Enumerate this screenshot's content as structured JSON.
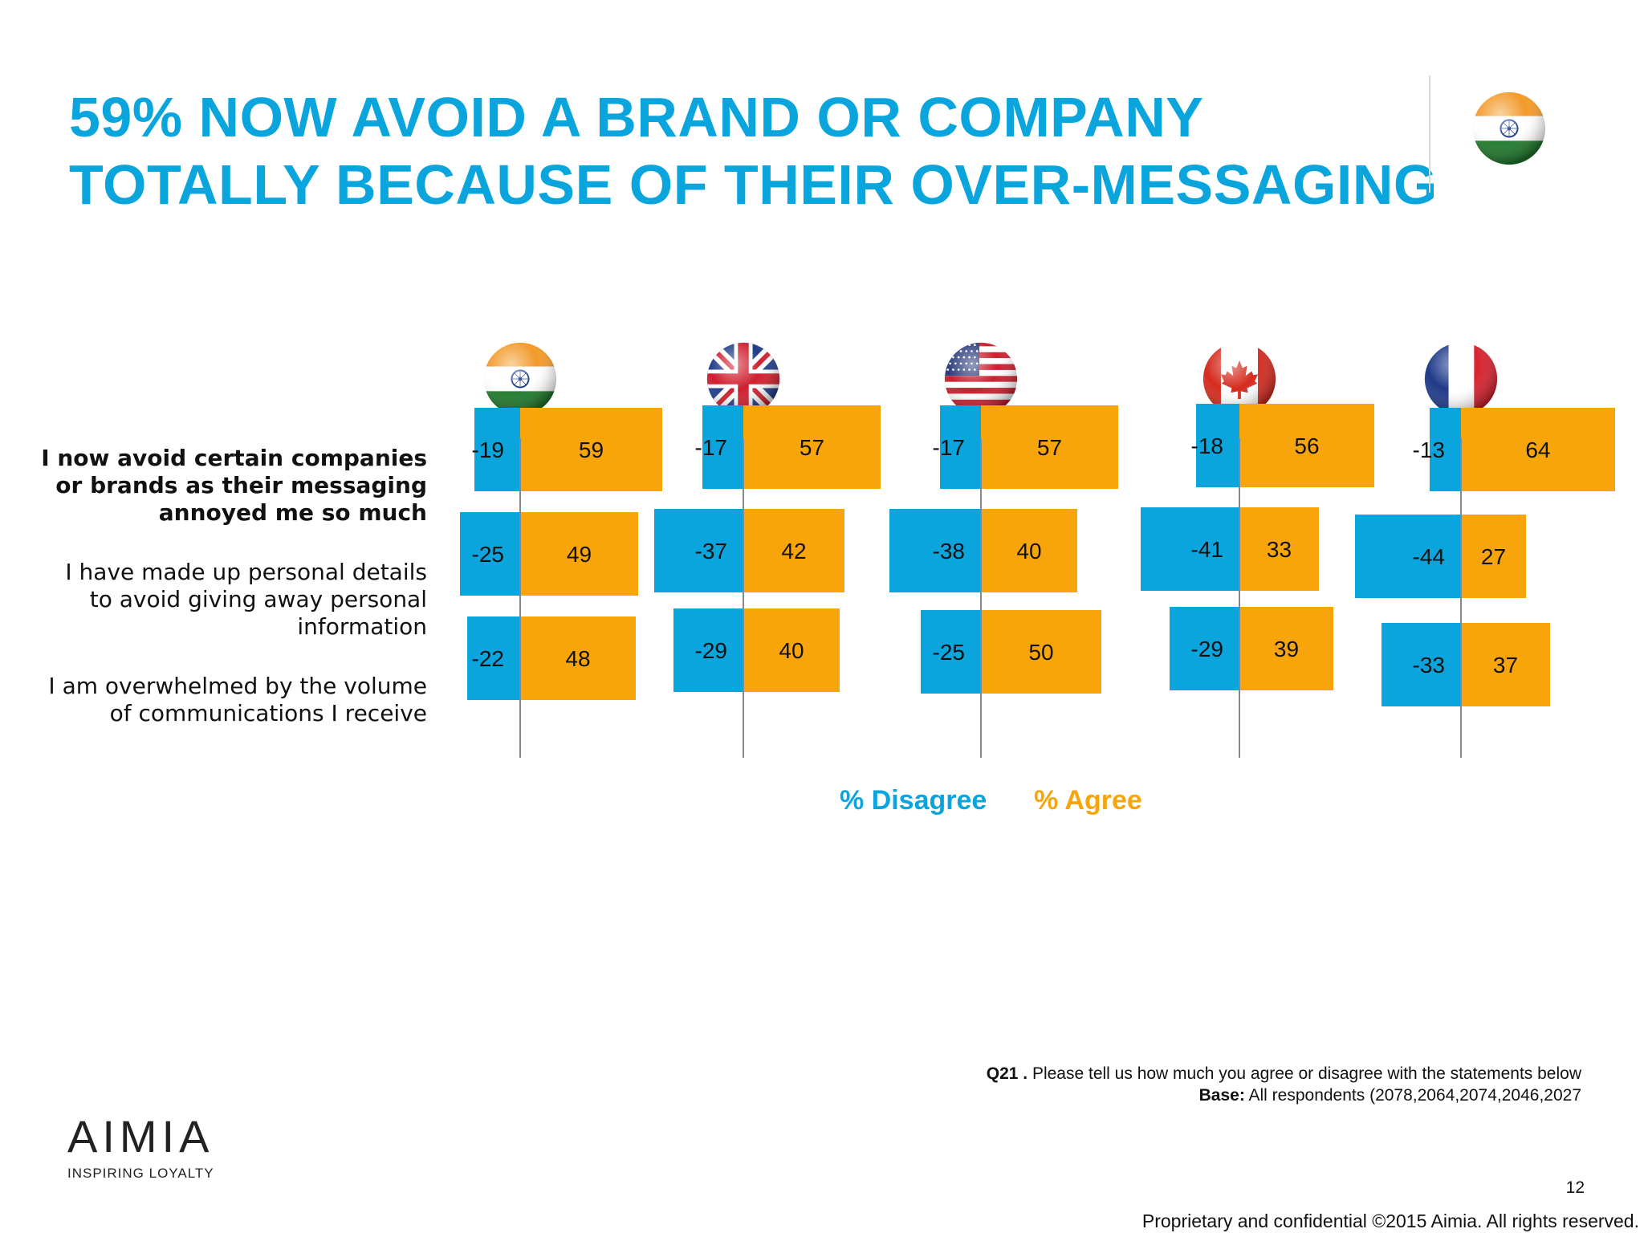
{
  "title": {
    "line1": "59% NOW AVOID A BRAND OR COMPANY",
    "line2": "TOTALLY BECAUSE OF THEIR OVER-MESSAGING"
  },
  "header_flag_icon": "india-flag-icon",
  "colors": {
    "disagree": "#0aa5dd",
    "agree": "#f8a50b",
    "title": "#0aa5dd"
  },
  "chart_data": {
    "type": "bar",
    "orientation": "horizontal-diverging",
    "categories": [
      "I now avoid certain companies or brands as their messaging annoyed me so much",
      "I have made up personal details to avoid giving away personal information",
      "I am overwhelmed by the volume of communications I receive"
    ],
    "statements": [
      {
        "lines": [
          "I now avoid certain companies",
          "or brands as their messaging",
          "annoyed me so much"
        ],
        "bold": true
      },
      {
        "lines": [
          "I have made up personal details",
          "to avoid giving away personal",
          "information"
        ],
        "bold": false
      },
      {
        "lines": [
          "I am overwhelmed by the volume",
          "of communications I receive"
        ],
        "bold": false
      }
    ],
    "panels": [
      {
        "flag": "india-flag-icon",
        "disagree": [
          -19,
          -25,
          -22
        ],
        "agree": [
          59,
          49,
          48
        ]
      },
      {
        "flag": "uk-flag-icon",
        "disagree": [
          -17,
          -37,
          -29
        ],
        "agree": [
          57,
          42,
          40
        ]
      },
      {
        "flag": "usa-flag-icon",
        "disagree": [
          -17,
          -38,
          -25
        ],
        "agree": [
          57,
          40,
          50
        ]
      },
      {
        "flag": "canada-flag-icon",
        "disagree": [
          -18,
          -41,
          -29
        ],
        "agree": [
          56,
          33,
          39
        ]
      },
      {
        "flag": "france-flag-icon",
        "disagree": [
          -13,
          -44,
          -33
        ],
        "agree": [
          64,
          27,
          37
        ]
      }
    ],
    "series": [
      {
        "name": "% Disagree",
        "color": "#0aa5dd"
      },
      {
        "name": "% Agree",
        "color": "#f8a50b"
      }
    ],
    "legend": "bottom-center",
    "grid": false
  },
  "legend": {
    "disagree": "% Disagree",
    "agree": "% Agree"
  },
  "footnote": {
    "q_label": "Q21 .",
    "q_text": " Please tell us how much you agree or disagree with the statements below",
    "base_label": "Base:",
    "base_text": " All respondents (2078,2064,2074,2046,2027"
  },
  "logo": {
    "word": "AIMIA",
    "tagline": "INSPIRING LOYALTY"
  },
  "page_number": "12",
  "copyright": "Proprietary and confidential ©2015 Aimia. All rights reserved."
}
